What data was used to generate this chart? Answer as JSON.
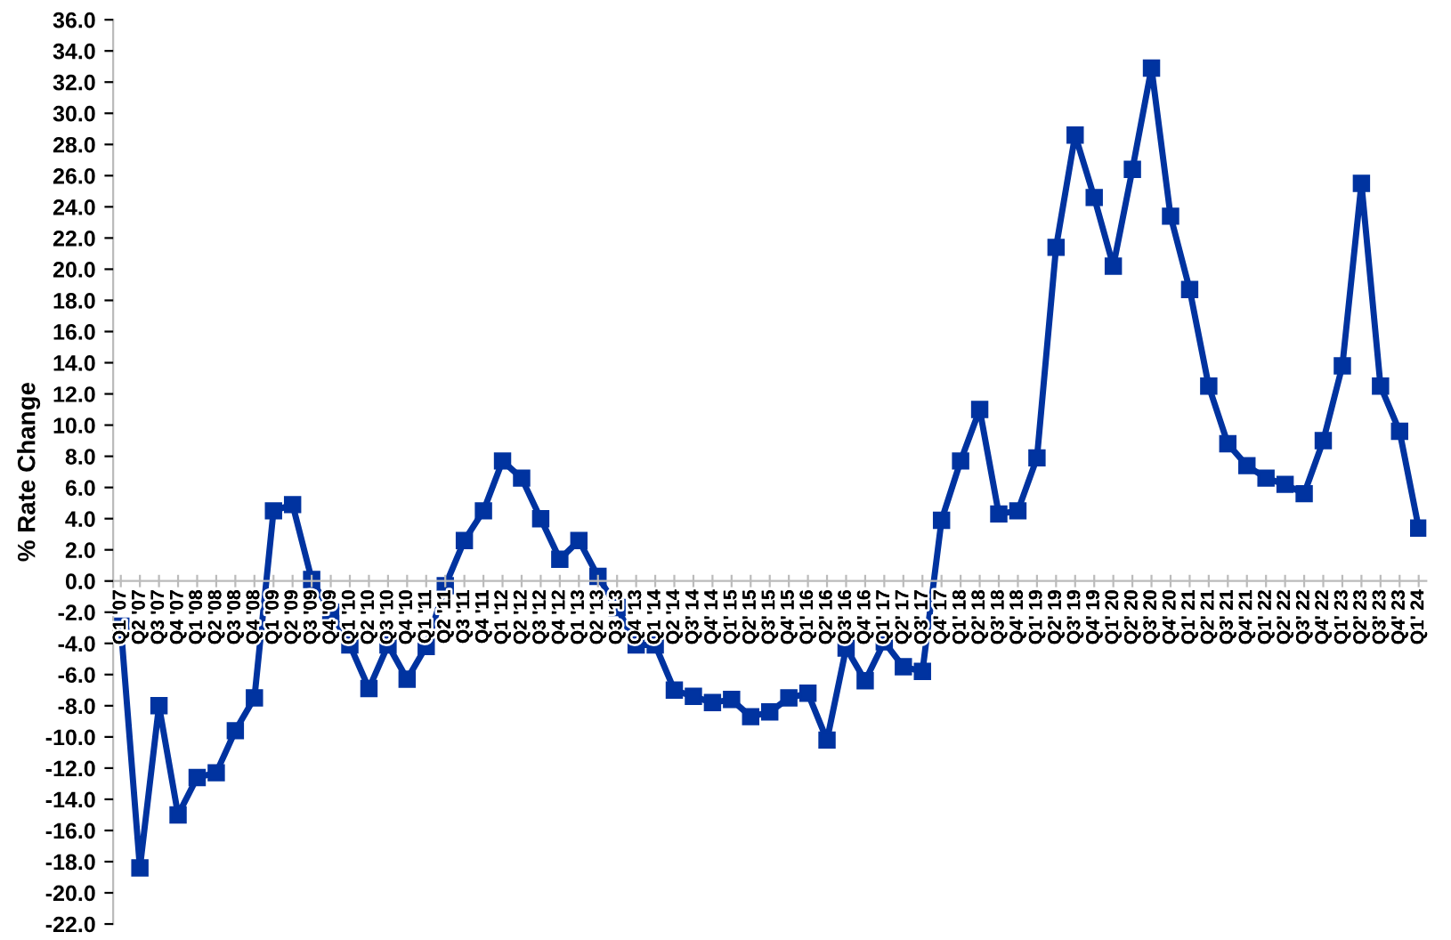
{
  "chart_data": {
    "type": "line",
    "ylabel": "% Rate Change",
    "categories": [
      "Q1 '07",
      "Q2 '07",
      "Q3 '07",
      "Q4 '07",
      "Q1 '08",
      "Q2 '08",
      "Q3 '08",
      "Q4 '08",
      "Q1 '09",
      "Q2 '09",
      "Q3 '09",
      "Q4 '09",
      "Q1 '10",
      "Q2 '10",
      "Q3 '10",
      "Q4 '10",
      "Q1 '11",
      "Q2 '11",
      "Q3 '11",
      "Q4 '11",
      "Q1 '12",
      "Q2 '12",
      "Q3 '12",
      "Q4 '12",
      "Q1 '13",
      "Q2 '13",
      "Q3 '13",
      "Q4 '13",
      "Q1 '14",
      "Q2 '14",
      "Q3' 14",
      "Q4' 14",
      "Q1' 15",
      "Q2' 15",
      "Q3' 15",
      "Q4' 15",
      "Q1' 16",
      "Q2' 16",
      "Q3' 16",
      "Q4' 16",
      "Q1' 17",
      "Q2' 17",
      "Q3' 17",
      "Q4' 17",
      "Q1' 18",
      "Q2' 18",
      "Q3' 18",
      "Q4' 18",
      "Q1' 19",
      "Q2' 19",
      "Q3' 19",
      "Q4' 19",
      "Q1' 20",
      "Q2' 20",
      "Q3' 20",
      "Q4' 20",
      "Q1' 21",
      "Q2' 21",
      "Q3' 21",
      "Q4' 21",
      "Q1' 22",
      "Q2' 22",
      "Q3' 22",
      "Q4' 22",
      "Q1' 23",
      "Q2' 23",
      "Q3' 23",
      "Q4' 23",
      "Q1' 24"
    ],
    "series": [
      {
        "color": "#0033a0",
        "values": [
          -2.9,
          -18.4,
          -8.0,
          -15.0,
          -12.6,
          -12.3,
          -9.6,
          -7.5,
          4.5,
          4.9,
          0.1,
          -2.0,
          -4.1,
          -6.9,
          -4.1,
          -6.3,
          -4.2,
          -0.3,
          2.6,
          4.5,
          7.7,
          6.6,
          4.0,
          1.4,
          2.6,
          0.3,
          -1.7,
          -4.1,
          -4.1,
          -7.0,
          -7.4,
          -7.8,
          -7.6,
          -8.7,
          -8.4,
          -7.5,
          -7.2,
          -10.2,
          -4.3,
          -6.4,
          -3.9,
          -5.5,
          -5.8,
          3.9,
          7.7,
          11.0,
          4.3,
          4.5,
          7.9,
          21.4,
          28.6,
          24.6,
          20.2,
          26.4,
          32.9,
          23.4,
          18.7,
          12.5,
          8.8,
          7.4,
          6.6,
          6.2,
          5.6,
          9.0,
          13.8,
          25.5,
          12.5,
          9.6,
          3.4
        ]
      }
    ],
    "ylim": [
      -22,
      36
    ],
    "yticks": [
      {
        "value": -22,
        "label": "-22.0"
      },
      {
        "value": -20,
        "label": "-20.0"
      },
      {
        "value": -18,
        "label": "-18.0"
      },
      {
        "value": -16,
        "label": "-16.0"
      },
      {
        "value": -14,
        "label": "-14.0"
      },
      {
        "value": -12,
        "label": "-12.0"
      },
      {
        "value": -10,
        "label": "-10.0"
      },
      {
        "value": -8,
        "label": "-8.0"
      },
      {
        "value": -6,
        "label": "-6.0"
      },
      {
        "value": -4,
        "label": "-4.0"
      },
      {
        "value": -2,
        "label": "-2.0"
      },
      {
        "value": 0,
        "label": "0.0"
      },
      {
        "value": 2,
        "label": "2.0"
      },
      {
        "value": 4,
        "label": "4.0"
      },
      {
        "value": 6,
        "label": "6.0"
      },
      {
        "value": 8,
        "label": "8.0"
      },
      {
        "value": 10,
        "label": "10.0"
      },
      {
        "value": 12,
        "label": "12.0"
      },
      {
        "value": 14,
        "label": "14.0"
      },
      {
        "value": 16,
        "label": "16.0"
      },
      {
        "value": 18,
        "label": "18.0"
      },
      {
        "value": 20,
        "label": "20.0"
      },
      {
        "value": 22,
        "label": "22.0"
      },
      {
        "value": 24,
        "label": "24.0"
      },
      {
        "value": 26,
        "label": "26.0"
      },
      {
        "value": 28,
        "label": "28.0"
      },
      {
        "value": 30,
        "label": "30.0"
      },
      {
        "value": 32,
        "label": "32.0"
      },
      {
        "value": 34,
        "label": "34.0"
      },
      {
        "value": 36,
        "label": "36.0"
      }
    ],
    "grid": false,
    "legend": false,
    "marker": "square",
    "line_style": "solid"
  }
}
